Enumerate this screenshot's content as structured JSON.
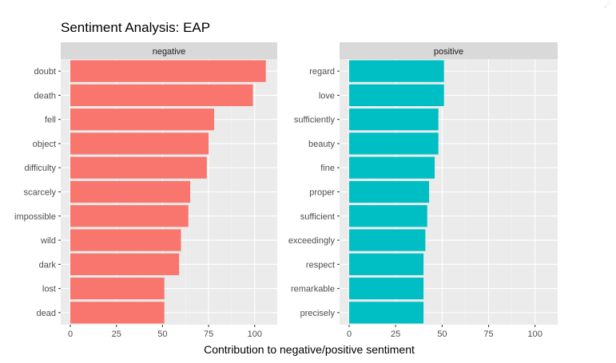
{
  "corner_icon": "☄",
  "chart_data": {
    "type": "bar",
    "orientation": "horizontal",
    "title": "Sentiment Analysis: EAP",
    "xlabel": "Contribution to negative/positive sentiment",
    "ylabel": "",
    "xlim": [
      0,
      107
    ],
    "x_ticks": [
      0,
      25,
      50,
      75,
      100
    ],
    "grid": true,
    "legend": "none",
    "facets": [
      {
        "name": "negative",
        "color": "#F8766D",
        "categories": [
          "doubt",
          "death",
          "fell",
          "object",
          "difficulty",
          "scarcely",
          "impossible",
          "wild",
          "dark",
          "lost",
          "dead"
        ],
        "values": [
          106,
          99,
          78,
          75,
          74,
          65,
          64,
          60,
          59,
          51,
          51
        ]
      },
      {
        "name": "positive",
        "color": "#00BFC4",
        "categories": [
          "regard",
          "love",
          "sufficiently",
          "beauty",
          "fine",
          "proper",
          "sufficient",
          "exceedingly",
          "respect",
          "remarkable",
          "precisely"
        ],
        "values": [
          51,
          51,
          48,
          48,
          46,
          43,
          42,
          41,
          40,
          40,
          40
        ]
      }
    ]
  }
}
